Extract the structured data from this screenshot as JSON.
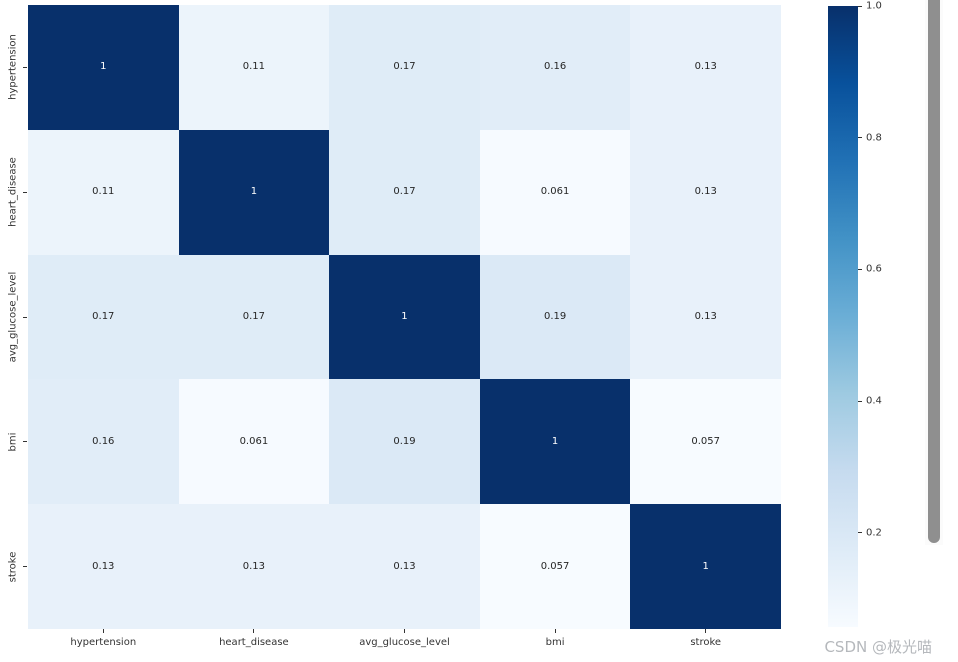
{
  "watermark": {
    "text": "CSDN @极光喵",
    "color": "#b5b8bc"
  },
  "scrollbar": {
    "thumb_color": "#8f8f8f"
  },
  "chart_data": {
    "type": "heatmap",
    "title": "",
    "xlabel": "",
    "ylabel": "",
    "categories": [
      "hypertension",
      "heart_disease",
      "avg_glucose_level",
      "bmi",
      "stroke"
    ],
    "matrix": [
      [
        1,
        0.11,
        0.17,
        0.16,
        0.13
      ],
      [
        0.11,
        1,
        0.17,
        0.061,
        0.13
      ],
      [
        0.17,
        0.17,
        1,
        0.19,
        0.13
      ],
      [
        0.16,
        0.061,
        0.19,
        1,
        0.057
      ],
      [
        0.13,
        0.13,
        0.13,
        0.057,
        1
      ]
    ],
    "cell_labels": [
      [
        "1",
        "0.11",
        "0.17",
        "0.16",
        "0.13"
      ],
      [
        "0.11",
        "1",
        "0.17",
        "0.061",
        "0.13"
      ],
      [
        "0.17",
        "0.17",
        "1",
        "0.19",
        "0.13"
      ],
      [
        "0.16",
        "0.061",
        "0.19",
        "1",
        "0.057"
      ],
      [
        "0.13",
        "0.13",
        "0.13",
        "0.057",
        "1"
      ]
    ],
    "colormap": "Blues",
    "vmin": 0.057,
    "vmax": 1.0,
    "grid": false,
    "colorbar": {
      "position": "right",
      "ticks": [
        {
          "label": "1.0",
          "value": 1.0
        },
        {
          "label": "0.8",
          "value": 0.8
        },
        {
          "label": "0.6",
          "value": 0.6
        },
        {
          "label": "0.4",
          "value": 0.4
        },
        {
          "label": "0.2",
          "value": 0.2
        }
      ]
    },
    "colors": {
      "cmap_anchors": [
        "#f7fbff",
        "#deebf7",
        "#c6dbef",
        "#9ecae1",
        "#6baed6",
        "#4292c6",
        "#2171b5",
        "#08519c",
        "#08306b"
      ],
      "annotation_dark": "#262626",
      "annotation_light": "#ffffff",
      "tick_text": "#333333"
    }
  }
}
